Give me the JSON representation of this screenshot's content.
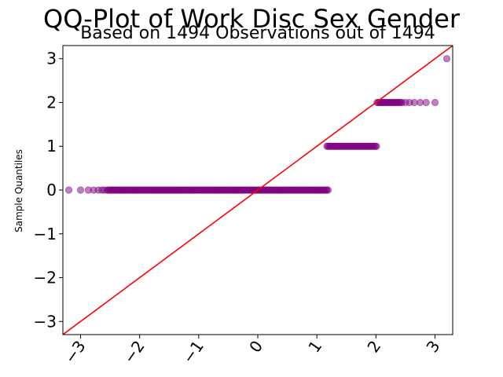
{
  "chart_data": {
    "type": "scatter",
    "title": "QQ-Plot of Work Disc Sex Gender",
    "subtitle": "Based on 1494 Observations out of 1494",
    "xlabel": "",
    "ylabel": "Sample Quantiles",
    "xlim": [
      -3.3,
      3.3
    ],
    "ylim": [
      -3.3,
      3.3
    ],
    "xticks": [
      -3,
      -2,
      -1,
      0,
      1,
      2,
      3
    ],
    "yticks": [
      -3,
      -2,
      -1,
      0,
      1,
      2,
      3
    ],
    "xtick_labels": [
      "−3",
      "−2",
      "−1",
      "0",
      "1",
      "2",
      "3"
    ],
    "ytick_labels": [
      "−3",
      "−2",
      "−1",
      "0",
      "1",
      "2",
      "3"
    ],
    "n_observations": 1494,
    "point_color": "#800080",
    "reference_line_color": "#ff0000",
    "reference_line": {
      "slope": 1,
      "intercept": 0
    },
    "grid": false,
    "groups": [
      {
        "y": 0,
        "x_dense_range": [
          -2.55,
          1.2
        ],
        "x_sparse": [
          -3.2,
          -3.0,
          -2.87,
          -2.78,
          -2.7,
          -2.64,
          -2.6
        ]
      },
      {
        "y": 1,
        "x_dense_range": [
          1.17,
          2.02
        ],
        "x_sparse": []
      },
      {
        "y": 2,
        "x_dense_range": [
          2.02,
          2.45
        ],
        "x_sparse": [
          2.5,
          2.57,
          2.65,
          2.75,
          2.85,
          3.0
        ]
      },
      {
        "y": 3,
        "x_dense_range": null,
        "x_sparse": [
          3.2
        ]
      }
    ]
  }
}
